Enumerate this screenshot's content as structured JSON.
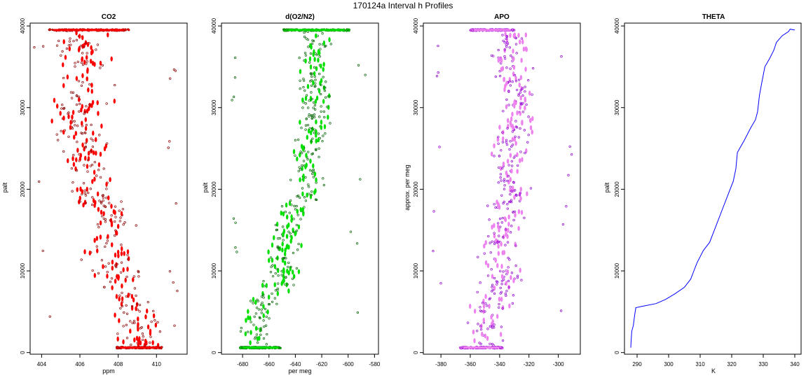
{
  "figure_title": "170124a   Interval h Profiles",
  "colors": {
    "co2": "#ff0000",
    "co2_edge": "#8b0000",
    "o2": "#00e000",
    "o2_edge": "#006400",
    "apo": "#ee82ee",
    "apo_edge": "#9400d3",
    "theta": "#0000ff",
    "axis": "#000000"
  },
  "chart_data": [
    {
      "id": "co2",
      "type": "scatter",
      "title": "CO2",
      "xlabel": "ppm",
      "ylabel": "palt",
      "xlim": [
        403.4,
        411.6
      ],
      "ylim": [
        -200,
        40350
      ],
      "xticks": [
        "404",
        "406",
        "408",
        "410"
      ],
      "yticks": [
        "0",
        "10000",
        "20000",
        "30000",
        "40000"
      ],
      "profile": [
        [
          0,
          409.2
        ],
        [
          3000,
          409.3
        ],
        [
          6000,
          408.8
        ],
        [
          9000,
          408.0
        ],
        [
          12000,
          407.6
        ],
        [
          16000,
          407.8
        ],
        [
          20000,
          406.5
        ],
        [
          24000,
          406.3
        ],
        [
          28000,
          405.8
        ],
        [
          32000,
          406.2
        ],
        [
          36000,
          406.1
        ],
        [
          39500,
          406.0
        ]
      ],
      "spread": 1.1,
      "outlier_left": [
        404.6,
        403.6
      ],
      "outlier_right": [
        410.6,
        411.2
      ],
      "flight_legs": [
        {
          "alt": 600,
          "x1": 407.9,
          "x2": 410.3
        },
        {
          "alt": 39500,
          "x1": 404.3,
          "x2": 408.6
        }
      ]
    },
    {
      "id": "o2",
      "type": "scatter",
      "title": "d(O2/N2)",
      "xlabel": "per meg",
      "ylabel": "palt",
      "xlim": [
        -696,
        -577
      ],
      "ylim": [
        -200,
        40350
      ],
      "xticks": [
        "-680",
        "-660",
        "-640",
        "-620",
        "-600",
        "-580"
      ],
      "yticks": [
        "0",
        "10000",
        "20000",
        "30000",
        "40000"
      ],
      "profile": [
        [
          0,
          -672
        ],
        [
          3000,
          -670
        ],
        [
          6000,
          -666
        ],
        [
          9000,
          -650
        ],
        [
          12000,
          -648
        ],
        [
          16000,
          -646
        ],
        [
          20000,
          -630
        ],
        [
          24000,
          -632
        ],
        [
          28000,
          -625
        ],
        [
          32000,
          -626
        ],
        [
          36000,
          -625
        ],
        [
          39500,
          -625
        ]
      ],
      "spread": 10,
      "outlier_left": [
        -688,
        -684
      ],
      "outlier_right": [
        -598,
        -584
      ],
      "flight_legs": [
        {
          "alt": 600,
          "x1": -682,
          "x2": -651
        },
        {
          "alt": 39500,
          "x1": -649,
          "x2": -599
        }
      ]
    },
    {
      "id": "apo",
      "type": "scatter",
      "title": "APO",
      "xlabel": "",
      "ylabel": "approx. per meg",
      "xlim": [
        -392,
        -285
      ],
      "ylim": [
        -200,
        40350
      ],
      "xticks": [
        "-380",
        "-360",
        "-340",
        "-320",
        "-300"
      ],
      "yticks": [
        "0",
        "10000",
        "20000",
        "30000",
        "40000"
      ],
      "profile": [
        [
          0,
          -348
        ],
        [
          3000,
          -348
        ],
        [
          6000,
          -346
        ],
        [
          9000,
          -338
        ],
        [
          12000,
          -340
        ],
        [
          16000,
          -337
        ],
        [
          20000,
          -332
        ],
        [
          24000,
          -335
        ],
        [
          28000,
          -328
        ],
        [
          32000,
          -330
        ],
        [
          36000,
          -332
        ],
        [
          39500,
          -330
        ]
      ],
      "spread": 10,
      "outlier_left": [
        -386,
        -380
      ],
      "outlier_right": [
        -306,
        -288
      ],
      "flight_legs": [
        {
          "alt": 600,
          "x1": -367,
          "x2": -338
        },
        {
          "alt": 39500,
          "x1": -360,
          "x2": -330
        }
      ]
    },
    {
      "id": "theta",
      "type": "line",
      "title": "THETA",
      "xlabel": "K",
      "ylabel": "palt",
      "xlim": [
        286,
        342
      ],
      "ylim": [
        -200,
        40350
      ],
      "xticks": [
        "290",
        "300",
        "310",
        "320",
        "330",
        "340"
      ],
      "yticks": [
        "0",
        "10000",
        "20000",
        "30000",
        "40000"
      ],
      "points": [
        [
          288,
          600
        ],
        [
          288.1,
          1500
        ],
        [
          288.3,
          2600
        ],
        [
          288.8,
          3300
        ],
        [
          289.2,
          4500
        ],
        [
          289.6,
          5500
        ],
        [
          292,
          5700
        ],
        [
          296,
          6000
        ],
        [
          299,
          6500
        ],
        [
          302,
          7200
        ],
        [
          305,
          8000
        ],
        [
          307,
          9000
        ],
        [
          308,
          10000
        ],
        [
          309,
          11000
        ],
        [
          311,
          12500
        ],
        [
          313,
          13500
        ],
        [
          315,
          15500
        ],
        [
          317,
          17500
        ],
        [
          319,
          19500
        ],
        [
          320.5,
          21000
        ],
        [
          321.3,
          22500
        ],
        [
          321.8,
          24500
        ],
        [
          322.5,
          25000
        ],
        [
          324,
          26000
        ],
        [
          326,
          27500
        ],
        [
          327.5,
          28500
        ],
        [
          328.2,
          29500
        ],
        [
          328.8,
          31500
        ],
        [
          329.5,
          33000
        ],
        [
          330.5,
          35000
        ],
        [
          332,
          36000
        ],
        [
          333.3,
          37000
        ],
        [
          334.2,
          38000
        ],
        [
          336,
          38800
        ],
        [
          338,
          39300
        ],
        [
          338.5,
          39600
        ],
        [
          340,
          39500
        ]
      ]
    }
  ]
}
